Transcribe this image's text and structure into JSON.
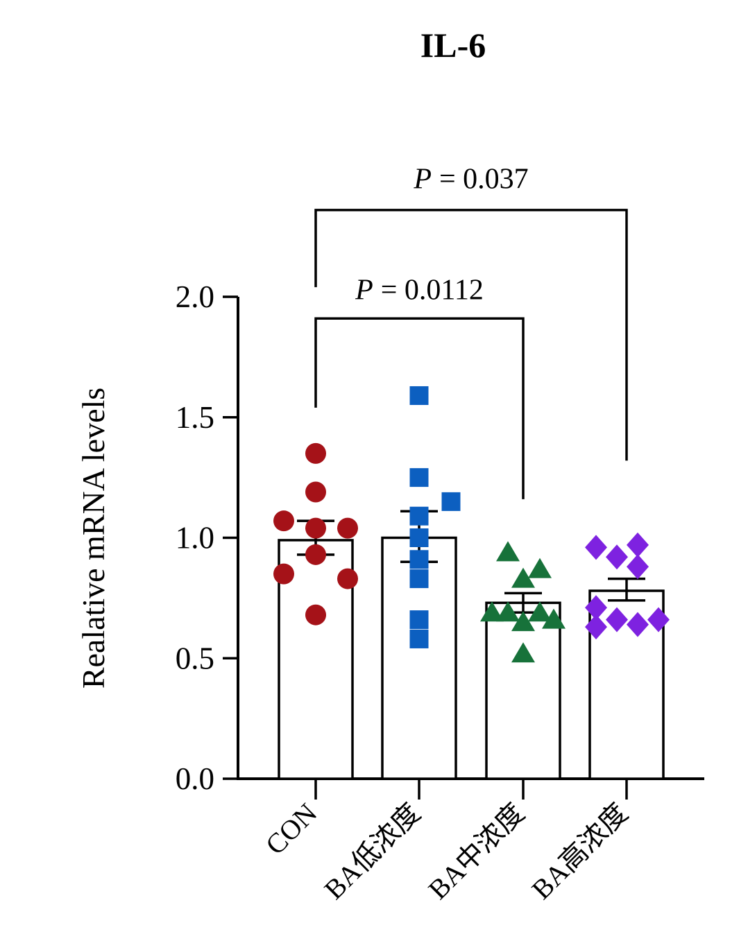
{
  "chart_data": {
    "type": "bar",
    "title": "IL-6",
    "ylabel": "Realative mRNA levels",
    "xlabel": "",
    "ylim": [
      0,
      2
    ],
    "yticks": [
      0,
      0.5,
      1,
      1.5,
      2
    ],
    "grid": false,
    "legend": "none",
    "bar_fill": "#ffffff",
    "bar_stroke": "#000000",
    "categories": [
      "CON",
      "BA低浓度",
      "BA中浓度",
      "BA高浓度"
    ],
    "bars": [
      {
        "label": "CON",
        "mean": 0.99,
        "err_low": 0.93,
        "err_high": 1.07,
        "marker": "circle",
        "color": "#A51218",
        "points": [
          {
            "dx": 0,
            "v": 1.35
          },
          {
            "dx": 0,
            "v": 1.19
          },
          {
            "dx": -46,
            "v": 1.07
          },
          {
            "dx": 0,
            "v": 1.04
          },
          {
            "dx": 46,
            "v": 1.04
          },
          {
            "dx": 0,
            "v": 0.93
          },
          {
            "dx": -46,
            "v": 0.85
          },
          {
            "dx": 46,
            "v": 0.83
          },
          {
            "dx": 0,
            "v": 0.68
          }
        ]
      },
      {
        "label": "BA低浓度",
        "mean": 1.0,
        "err_low": 0.9,
        "err_high": 1.11,
        "marker": "square",
        "color": "#0C5FC0",
        "points": [
          {
            "dx": 0,
            "v": 1.59
          },
          {
            "dx": 0,
            "v": 1.25
          },
          {
            "dx": 46,
            "v": 1.15
          },
          {
            "dx": 0,
            "v": 1.09
          },
          {
            "dx": 0,
            "v": 1.0
          },
          {
            "dx": 0,
            "v": 0.91
          },
          {
            "dx": 0,
            "v": 0.83
          },
          {
            "dx": 0,
            "v": 0.66
          },
          {
            "dx": 0,
            "v": 0.58
          }
        ]
      },
      {
        "label": "BA中浓度",
        "mean": 0.73,
        "err_low": 0.69,
        "err_high": 0.77,
        "marker": "triangle",
        "color": "#17723A",
        "points": [
          {
            "dx": -22,
            "v": 0.94
          },
          {
            "dx": 24,
            "v": 0.87
          },
          {
            "dx": 0,
            "v": 0.83
          },
          {
            "dx": -45,
            "v": 0.69
          },
          {
            "dx": -22,
            "v": 0.69
          },
          {
            "dx": 24,
            "v": 0.69
          },
          {
            "dx": 44,
            "v": 0.66
          },
          {
            "dx": 0,
            "v": 0.65
          },
          {
            "dx": 0,
            "v": 0.52
          }
        ]
      },
      {
        "label": "BA高浓度",
        "mean": 0.78,
        "err_low": 0.74,
        "err_high": 0.83,
        "marker": "diamond",
        "color": "#7E22E0",
        "points": [
          {
            "dx": -44,
            "v": 0.96
          },
          {
            "dx": 16,
            "v": 0.97
          },
          {
            "dx": -14,
            "v": 0.92
          },
          {
            "dx": 16,
            "v": 0.88
          },
          {
            "dx": -44,
            "v": 0.71
          },
          {
            "dx": -14,
            "v": 0.66
          },
          {
            "dx": -44,
            "v": 0.63
          },
          {
            "dx": 16,
            "v": 0.64
          },
          {
            "dx": 46,
            "v": 0.66
          }
        ]
      }
    ],
    "significance": [
      {
        "label": "P = 0.0112",
        "from": 0,
        "to": 2,
        "y": 1.91,
        "drop_from": 1.54,
        "drop_to": 1.16,
        "label_y": 1.99
      },
      {
        "label": "P = 0.037",
        "from": 0,
        "to": 3,
        "y": 2.36,
        "drop_from": 2.04,
        "drop_to": 1.32,
        "label_y": 2.45
      }
    ]
  }
}
